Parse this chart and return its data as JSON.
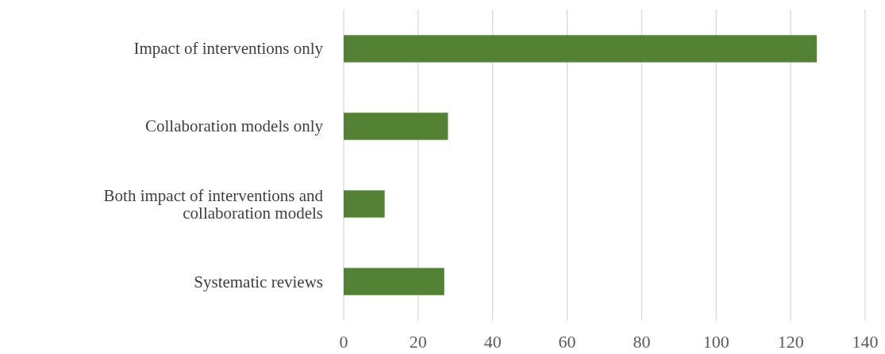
{
  "chart_data": {
    "type": "bar",
    "orientation": "horizontal",
    "categories": [
      "Impact of interventions only",
      "Collaboration models only",
      "Both impact of interventions and collaboration models",
      "Systematic reviews"
    ],
    "values": [
      127,
      28,
      11,
      27
    ],
    "color": "#548235",
    "xlim": [
      0,
      140
    ],
    "xticks": [
      0,
      20,
      40,
      60,
      80,
      100,
      120,
      140
    ],
    "grid": "x"
  }
}
